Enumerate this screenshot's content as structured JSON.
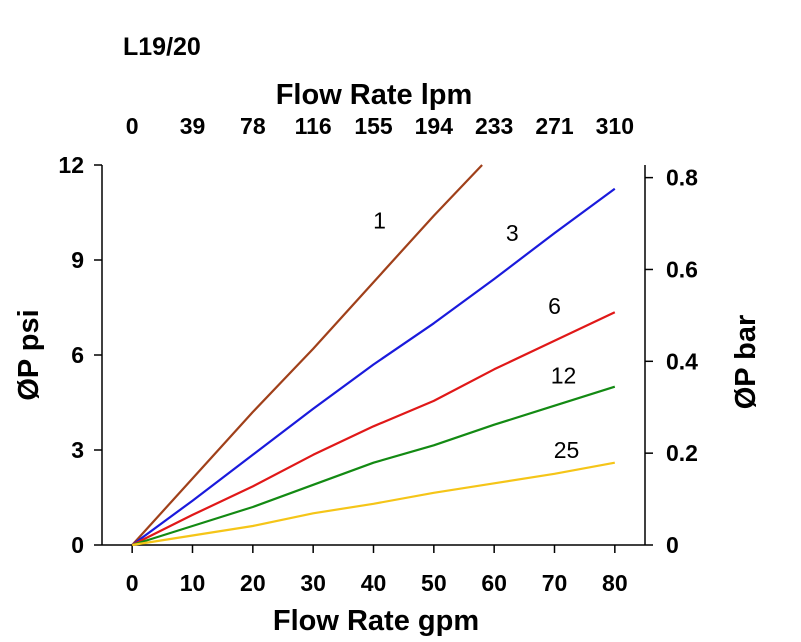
{
  "chart_data": {
    "type": "line",
    "title": "L19/20",
    "xlabel": "Flow Rate gpm",
    "x2label": "Flow Rate lpm",
    "ylabel": "ØP psi",
    "y2label": "ØP bar",
    "xlim": [
      -5,
      85
    ],
    "ylim": [
      0,
      12
    ],
    "y2lim": [
      0,
      0.8275
    ],
    "x_ticks": [
      "0",
      "10",
      "20",
      "30",
      "40",
      "50",
      "60",
      "70",
      "80"
    ],
    "x_tick_values": [
      0,
      10,
      20,
      30,
      40,
      50,
      60,
      70,
      80
    ],
    "x2_ticks": [
      "0",
      "39",
      "78",
      "116",
      "155",
      "194",
      "233",
      "271",
      "310"
    ],
    "y_ticks": [
      "0",
      "3",
      "6",
      "9",
      "12"
    ],
    "y_tick_values": [
      0,
      3,
      6,
      9,
      12
    ],
    "y2_ticks": [
      "0",
      "0.2",
      "0.4",
      "0.6",
      "0.8"
    ],
    "y2_tick_values": [
      0,
      0.2,
      0.4,
      0.6,
      0.8
    ],
    "series": [
      {
        "name": "1",
        "color": "#a0401a",
        "x": [
          0,
          10,
          20,
          30,
          40,
          50,
          58
        ],
        "y": [
          0,
          2.1,
          4.2,
          6.2,
          8.3,
          10.4,
          12.0
        ],
        "label_at": [
          41,
          10
        ]
      },
      {
        "name": "3",
        "color": "#1a1adc",
        "x": [
          0,
          10,
          20,
          30,
          40,
          50,
          60,
          70,
          80
        ],
        "y": [
          0,
          1.4,
          2.85,
          4.3,
          5.7,
          7.0,
          8.4,
          9.85,
          11.25
        ],
        "label_at": [
          63,
          9.6
        ]
      },
      {
        "name": "6",
        "color": "#e01818",
        "x": [
          0,
          10,
          20,
          30,
          40,
          50,
          60,
          70,
          80
        ],
        "y": [
          0,
          0.95,
          1.85,
          2.85,
          3.75,
          4.55,
          5.55,
          6.45,
          7.35
        ],
        "label_at": [
          70,
          7.3
        ]
      },
      {
        "name": "12",
        "color": "#138a13",
        "x": [
          0,
          10,
          20,
          30,
          40,
          50,
          60,
          70,
          80
        ],
        "y": [
          0,
          0.6,
          1.2,
          1.9,
          2.6,
          3.15,
          3.8,
          4.4,
          5.0
        ],
        "label_at": [
          71.5,
          5.1
        ]
      },
      {
        "name": "25",
        "color": "#f5c518",
        "x": [
          0,
          10,
          20,
          30,
          40,
          50,
          60,
          70,
          80
        ],
        "y": [
          0,
          0.3,
          0.6,
          1.0,
          1.3,
          1.65,
          1.95,
          2.25,
          2.6
        ],
        "label_at": [
          72,
          2.75
        ]
      }
    ]
  }
}
